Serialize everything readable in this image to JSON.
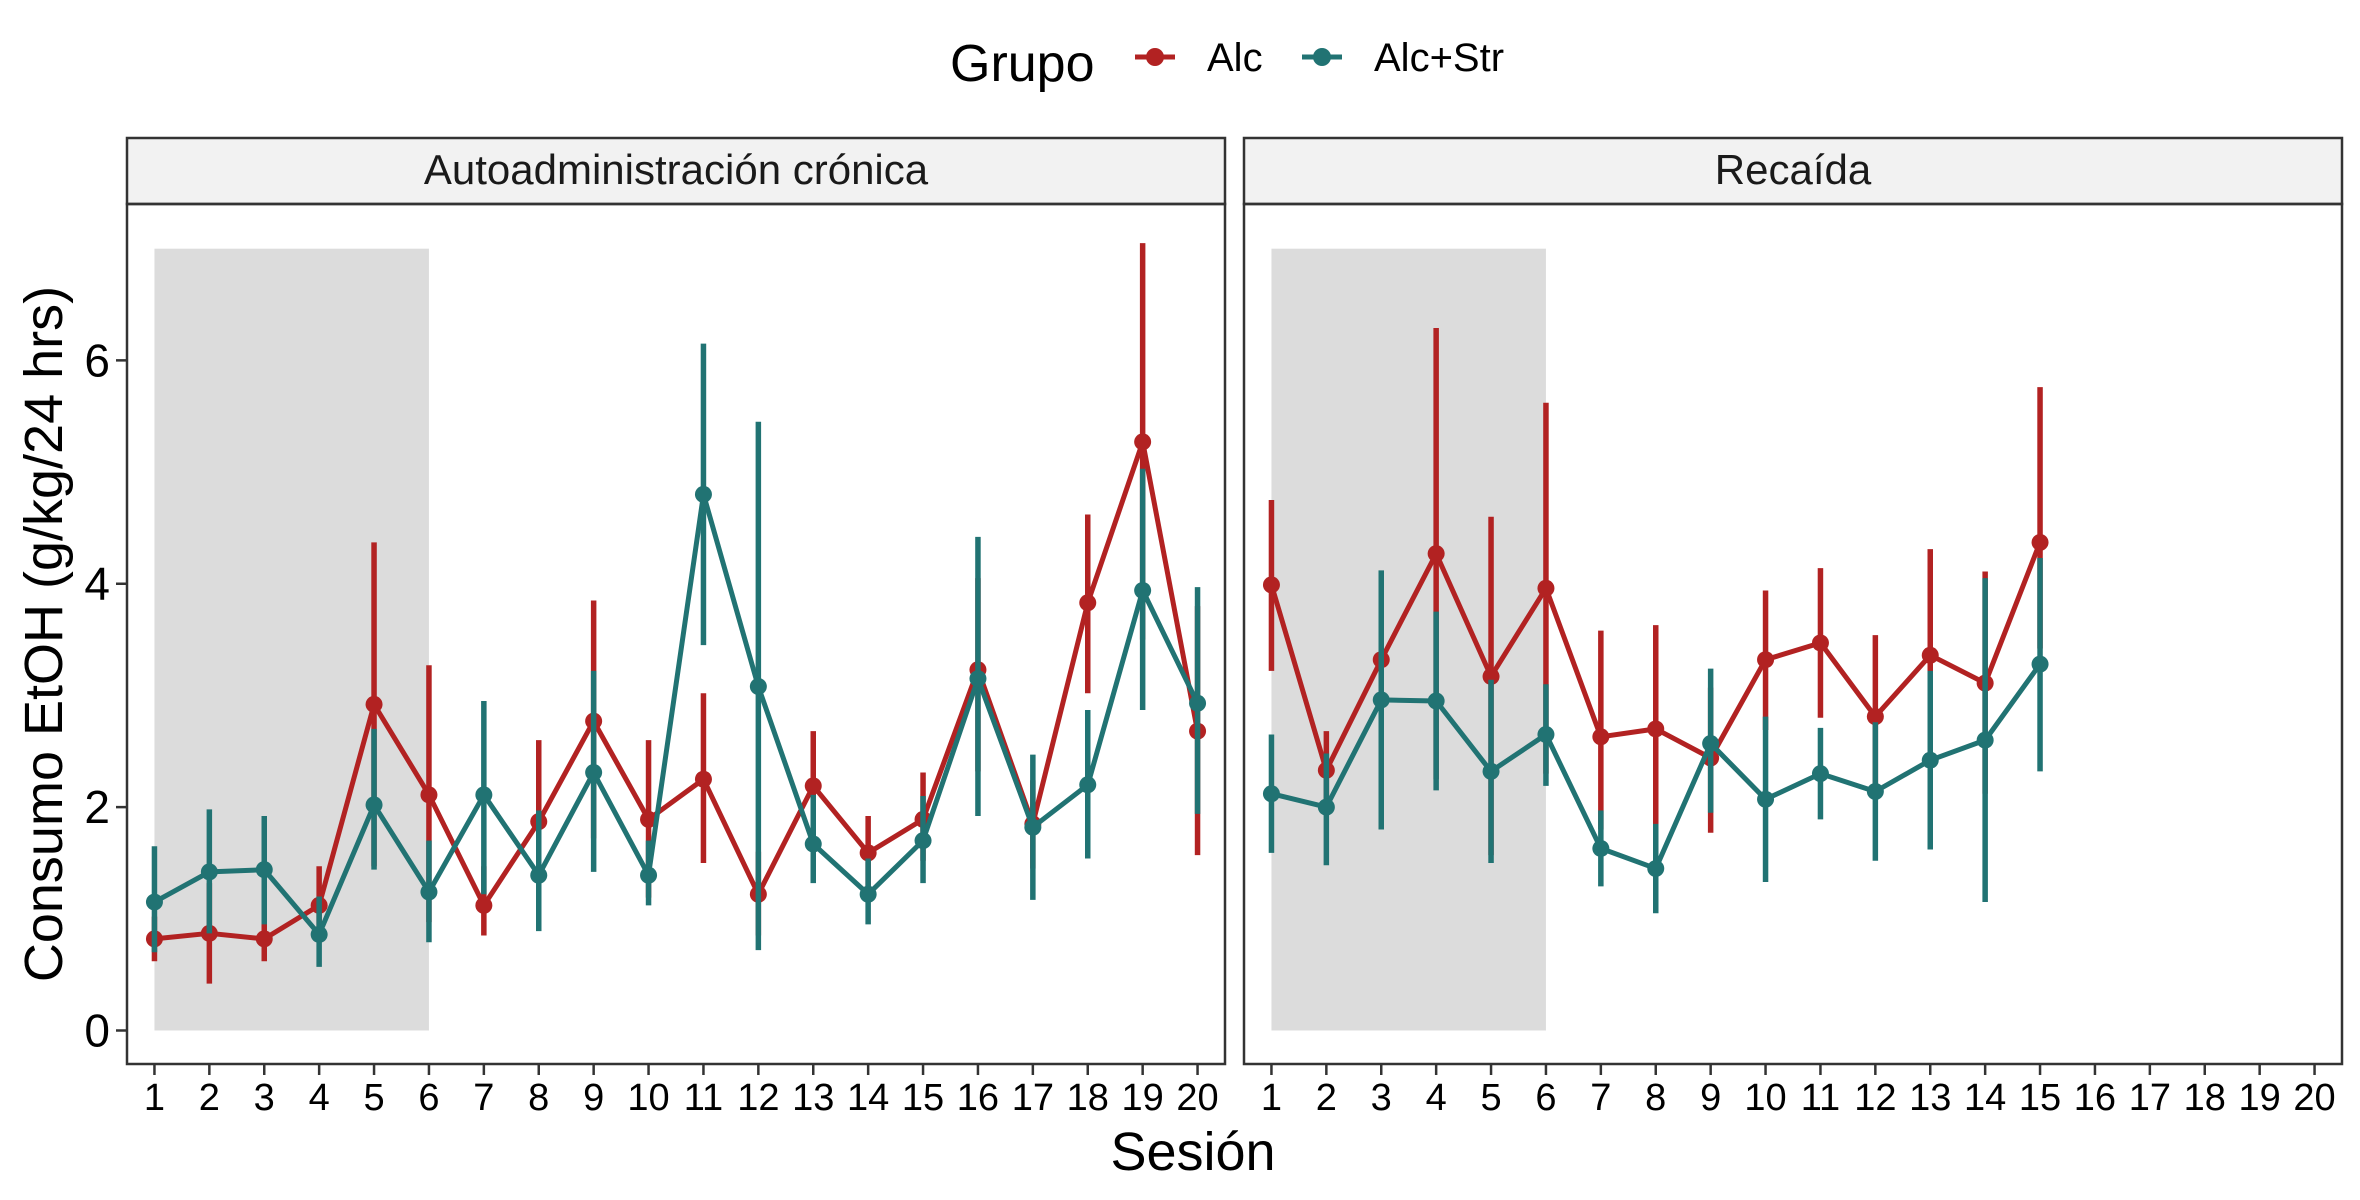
{
  "legend": {
    "title": "Grupo",
    "position": "top",
    "entries": [
      {
        "label": "Alc",
        "color": "#B22222"
      },
      {
        "label": "Alc+Str",
        "color": "#217373"
      }
    ]
  },
  "axes": {
    "xlabel": "Sesión",
    "ylabel": "Consumo EtOH (g/kg/24 hrs)"
  },
  "chart_data": {
    "type": "line",
    "xlabel": "Sesión",
    "ylabel": "Consumo EtOH (g/kg/24 hrs)",
    "x_ticks": [
      "1",
      "2",
      "3",
      "4",
      "5",
      "6",
      "7",
      "8",
      "9",
      "10",
      "11",
      "12",
      "13",
      "14",
      "15",
      "16",
      "17",
      "18",
      "19",
      "20"
    ],
    "y_ticks": [
      0,
      2,
      4,
      6
    ],
    "ylim": [
      -0.3,
      7.4
    ],
    "xlim": [
      0.5,
      20.5
    ],
    "grid": false,
    "shaded_region": {
      "x": [
        1,
        6
      ],
      "y": [
        0,
        7
      ]
    },
    "panels": [
      {
        "title": "Autoadministración crónica",
        "series": [
          {
            "name": "Alc",
            "color": "#B22222",
            "x": [
              1,
              2,
              3,
              4,
              5,
              6,
              7,
              8,
              9,
              10,
              11,
              12,
              13,
              14,
              15,
              16,
              17,
              18,
              19,
              20
            ],
            "y": [
              0.82,
              0.87,
              0.82,
              1.12,
              2.92,
              2.11,
              1.12,
              1.87,
              2.77,
              1.89,
              2.25,
              1.22,
              2.19,
              1.59,
              1.89,
              3.23,
              1.85,
              3.83,
              5.27,
              2.68
            ],
            "ymin": [
              0.62,
              0.42,
              0.62,
              0.82,
              1.47,
              0.97,
              0.85,
              1.12,
              1.72,
              1.19,
              1.5,
              0.85,
              1.67,
              1.22,
              1.52,
              2.32,
              1.45,
              3.02,
              3.5,
              1.57
            ],
            "ymax": [
              1.02,
              1.32,
              1.02,
              1.47,
              4.37,
              3.27,
              1.47,
              2.6,
              3.85,
              2.6,
              3.02,
              1.6,
              2.68,
              1.92,
              2.31,
              4.05,
              2.24,
              4.62,
              7.05,
              3.8
            ]
          },
          {
            "name": "Alc+Str",
            "color": "#217373",
            "x": [
              1,
              2,
              3,
              4,
              5,
              6,
              7,
              8,
              9,
              10,
              11,
              12,
              13,
              14,
              15,
              16,
              17,
              18,
              19,
              20
            ],
            "y": [
              1.15,
              1.42,
              1.44,
              0.86,
              2.02,
              1.24,
              2.11,
              1.39,
              2.31,
              1.39,
              4.8,
              3.08,
              1.67,
              1.22,
              1.7,
              3.15,
              1.82,
              2.2,
              3.94,
              2.93
            ],
            "ymin": [
              0.7,
              0.87,
              0.95,
              0.57,
              1.44,
              0.79,
              1.22,
              0.89,
              1.42,
              1.12,
              3.45,
              0.72,
              1.32,
              0.95,
              1.32,
              1.92,
              1.17,
              1.54,
              2.87,
              1.94
            ],
            "ymax": [
              1.65,
              1.98,
              1.92,
              1.2,
              2.7,
              1.7,
              2.95,
              1.97,
              3.22,
              1.7,
              6.15,
              5.45,
              2.11,
              1.54,
              2.1,
              4.42,
              2.47,
              2.87,
              5.03,
              3.97
            ]
          }
        ]
      },
      {
        "title": "Recaída",
        "series": [
          {
            "name": "Alc",
            "color": "#B22222",
            "x": [
              1,
              2,
              3,
              4,
              5,
              6,
              7,
              8,
              9,
              10,
              11,
              12,
              13,
              14,
              15
            ],
            "y": [
              3.99,
              2.33,
              3.32,
              4.27,
              3.17,
              3.96,
              2.63,
              2.7,
              2.44,
              3.32,
              3.47,
              2.81,
              3.36,
              3.11,
              4.37
            ],
            "ymin": [
              3.22,
              2.02,
              2.65,
              2.25,
              1.57,
              2.3,
              1.8,
              1.8,
              1.77,
              2.69,
              2.8,
              2.12,
              2.48,
              2.12,
              3.42
            ],
            "ymax": [
              4.75,
              2.68,
              4.01,
              6.29,
              4.6,
              5.62,
              3.58,
              3.63,
              3.07,
              3.94,
              4.14,
              3.54,
              4.31,
              4.11,
              5.76
            ]
          },
          {
            "name": "Alc+Str",
            "color": "#217373",
            "x": [
              1,
              2,
              3,
              4,
              5,
              6,
              7,
              8,
              9,
              10,
              11,
              12,
              13,
              14,
              15
            ],
            "y": [
              2.12,
              2.0,
              2.96,
              2.95,
              2.32,
              2.65,
              1.63,
              1.45,
              2.57,
              2.07,
              2.3,
              2.14,
              2.42,
              2.6,
              3.28
            ],
            "ymin": [
              1.59,
              1.48,
              1.8,
              2.15,
              1.5,
              2.19,
              1.29,
              1.05,
              1.95,
              1.33,
              1.89,
              1.52,
              1.62,
              1.15,
              2.32
            ],
            "ymax": [
              2.65,
              2.48,
              4.12,
              3.75,
              3.14,
              3.1,
              1.97,
              1.85,
              3.24,
              2.81,
              2.71,
              2.76,
              3.22,
              4.05,
              4.23
            ]
          }
        ]
      }
    ]
  }
}
